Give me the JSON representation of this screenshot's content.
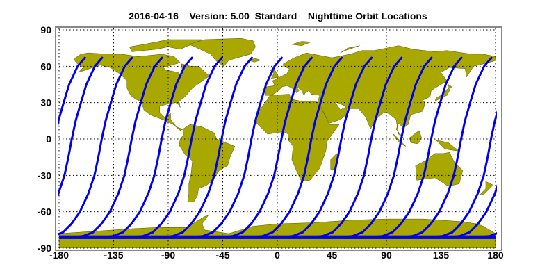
{
  "title": "2016-04-16    Version: 5.00  Standard    Nighttime Orbit Locations",
  "chart_data": {
    "type": "map",
    "projection": "equirectangular",
    "xlim": [
      -180,
      180
    ],
    "ylim": [
      -90,
      90
    ],
    "xticks": [
      "-180",
      "-135",
      "-90",
      "-45",
      "0",
      "45",
      "90",
      "135",
      "180"
    ],
    "yticks": [
      "90",
      "60",
      "30",
      "0",
      "-30",
      "-60",
      "-90"
    ],
    "grid": true,
    "grid_style": "dotted",
    "colors": {
      "land": "#a8a800",
      "orbit": "#0000ee",
      "frame": "#888888"
    },
    "orbits": {
      "equator_crossing_longitudes": [
        -169.5,
        -144.8,
        -120.1,
        -95.4,
        -70.7,
        -46.0,
        -21.3,
        3.4,
        28.1,
        52.8,
        77.5,
        102.2,
        126.9,
        151.6,
        176.3
      ],
      "max_latitude": 67,
      "min_latitude": -81
    }
  }
}
